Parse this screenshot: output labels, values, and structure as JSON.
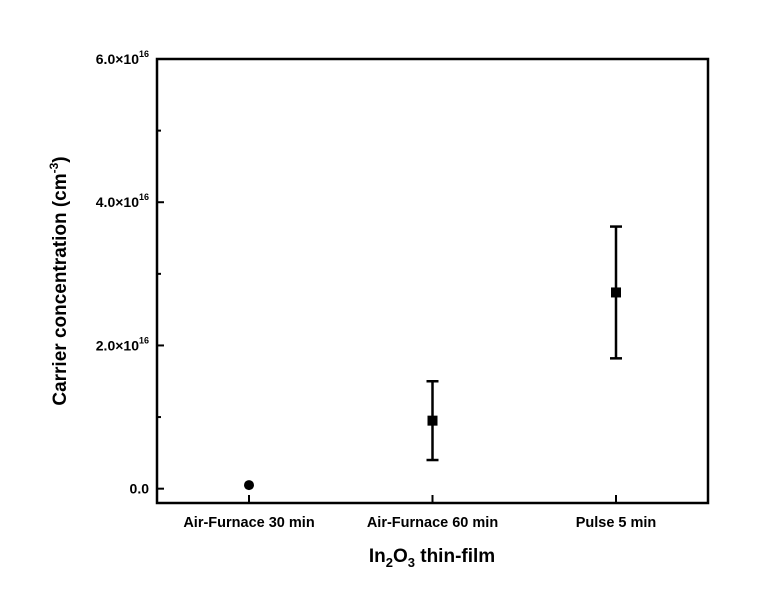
{
  "chart_data": {
    "type": "scatter",
    "title": "",
    "xlabel": {
      "main": "In",
      "sub1": "2",
      "mid": "O",
      "sub2": "3",
      "tail": " thin-film"
    },
    "ylabel": {
      "main": "Carrier concentration (cm",
      "sup": "-3",
      "tail": ")"
    },
    "categories": [
      "Air-Furnace 30 min",
      "Air-Furnace 60 min",
      "Pulse 5 min"
    ],
    "values": [
      500000000000000.0,
      9500000000000000.0,
      2.74e+16
    ],
    "errors": [
      0,
      5500000000000000.0,
      9200000000000000.0
    ],
    "markers": [
      "circle",
      "square",
      "square"
    ],
    "ylim": [
      -2000000000000000.0,
      6e+16
    ],
    "yticks": [
      {
        "value": 0,
        "label": "0.0",
        "exp": ""
      },
      {
        "value": 2e+16,
        "label": "2.0×10",
        "exp": "16"
      },
      {
        "value": 4e+16,
        "label": "4.0×10",
        "exp": "16"
      },
      {
        "value": 6e+16,
        "label": "6.0×10",
        "exp": "16"
      }
    ],
    "minor_yticks": [
      1e+16,
      3e+16,
      5e+16
    ],
    "grid": false,
    "color": "#000000"
  }
}
